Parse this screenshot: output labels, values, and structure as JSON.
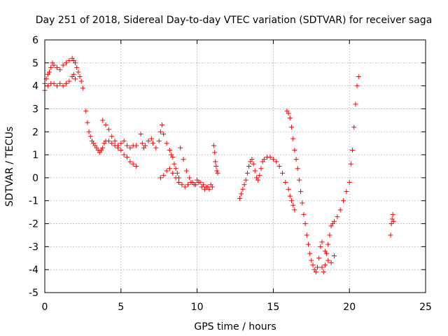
{
  "chart_data": {
    "type": "scatter",
    "title": "Day 251 of 2018, Sidereal Day-to-day VTEC variation (SDTVAR) for receiver saga",
    "xlabel": "GPS time / hours",
    "ylabel": "SDTVAR / TECUs",
    "xlim": [
      0,
      25
    ],
    "ylim": [
      -5,
      6
    ],
    "xticks": [
      0,
      5,
      10,
      15,
      20,
      25
    ],
    "yticks": [
      -5,
      -4,
      -3,
      -2,
      -1,
      0,
      1,
      2,
      3,
      4,
      5,
      6
    ],
    "grid": true,
    "marker": "+",
    "color": "#ff0000",
    "series": [
      {
        "x": [
          0.0,
          0.1,
          0.2,
          0.3,
          0.4,
          0.5,
          0.6,
          0.8,
          1.0,
          1.2,
          1.4,
          1.6,
          1.8,
          1.9,
          2.0,
          2.1,
          2.2,
          2.3,
          2.4,
          2.5,
          0.0,
          0.2,
          0.4,
          0.6,
          0.8,
          1.0,
          1.2,
          1.4,
          1.6,
          1.8,
          1.9,
          2.0,
          2.7,
          2.8,
          2.9,
          3.0,
          3.1,
          3.2,
          3.3,
          3.4,
          3.5,
          3.6,
          3.7,
          3.8,
          3.9,
          4.0,
          4.2,
          4.4,
          4.6,
          4.8,
          5.0,
          5.2,
          5.4,
          5.6,
          5.8,
          6.0,
          3.8,
          4.0,
          4.2,
          4.4,
          4.6,
          4.8,
          5.0,
          5.2,
          5.4,
          5.6,
          5.8,
          6.0,
          6.3,
          6.4,
          6.5,
          6.6,
          6.8,
          7.0,
          7.1,
          7.3,
          7.5,
          7.6,
          7.7,
          7.8,
          8.0,
          8.2,
          8.3,
          8.4,
          8.5,
          8.6,
          8.7,
          8.8,
          7.6,
          7.8,
          8.0,
          8.2,
          8.4,
          8.6,
          8.8,
          9.0,
          9.2,
          9.4,
          9.6,
          9.8,
          10.0,
          10.2,
          10.4,
          10.6,
          10.8,
          11.0,
          8.9,
          9.1,
          9.3,
          9.5,
          9.7,
          9.9,
          10.1,
          10.3,
          10.5,
          10.7,
          10.9,
          11.1,
          11.15,
          11.2,
          11.25,
          11.3,
          11.35,
          12.8,
          12.9,
          13.0,
          13.1,
          13.2,
          13.3,
          13.4,
          13.5,
          13.6,
          13.7,
          13.8,
          13.9,
          14.0,
          14.1,
          14.2,
          14.3,
          14.4,
          14.6,
          14.8,
          15.0,
          15.2,
          15.4,
          15.6,
          15.8,
          16.0,
          16.1,
          16.2,
          16.3,
          16.4,
          15.9,
          16.0,
          16.1,
          16.2,
          16.3,
          16.4,
          16.5,
          16.6,
          16.7,
          16.8,
          16.9,
          17.0,
          17.1,
          17.2,
          17.3,
          17.4,
          17.5,
          17.6,
          17.7,
          17.8,
          17.9,
          18.0,
          18.1,
          18.2,
          18.3,
          18.4,
          18.5,
          18.6,
          18.7,
          18.8,
          18.9,
          19.0,
          19.2,
          19.4,
          19.6,
          19.8,
          20.0,
          20.1,
          20.2,
          20.3,
          20.4,
          20.5,
          20.6,
          18.2,
          18.4,
          18.6,
          18.8,
          19.0,
          22.7,
          22.75,
          22.8,
          22.85,
          22.9,
          22.75
        ],
        "y": [
          4.1,
          4.3,
          4.5,
          4.6,
          4.8,
          5.0,
          4.9,
          4.8,
          4.7,
          4.9,
          5.0,
          5.1,
          5.2,
          5.1,
          5.0,
          4.8,
          4.6,
          4.4,
          4.2,
          3.9,
          3.8,
          4.0,
          4.1,
          4.1,
          4.0,
          4.1,
          4.0,
          4.1,
          4.2,
          4.4,
          4.5,
          4.3,
          2.9,
          2.4,
          2.0,
          1.8,
          1.6,
          1.5,
          1.4,
          1.3,
          1.2,
          1.1,
          1.2,
          1.3,
          1.5,
          1.6,
          1.6,
          1.5,
          1.4,
          1.3,
          1.5,
          1.6,
          1.4,
          1.3,
          1.4,
          1.4,
          2.5,
          2.3,
          2.1,
          1.8,
          1.6,
          1.4,
          1.2,
          1.0,
          0.9,
          0.7,
          0.6,
          0.5,
          1.9,
          1.5,
          1.3,
          1.4,
          1.6,
          1.7,
          1.5,
          1.3,
          1.6,
          2.0,
          2.3,
          1.9,
          1.5,
          1.2,
          1.0,
          0.9,
          0.6,
          0.4,
          0.2,
          0.0,
          0.0,
          0.1,
          0.3,
          0.4,
          0.2,
          0.0,
          -0.2,
          -0.3,
          -0.4,
          -0.3,
          -0.2,
          -0.3,
          -0.1,
          -0.2,
          -0.3,
          -0.4,
          -0.5,
          -0.4,
          1.3,
          0.8,
          0.3,
          0.0,
          -0.2,
          -0.3,
          -0.2,
          -0.4,
          -0.5,
          -0.4,
          -0.3,
          1.4,
          1.1,
          0.7,
          0.5,
          0.3,
          0.2,
          -0.9,
          -0.7,
          -0.5,
          -0.3,
          -0.1,
          0.2,
          0.5,
          0.7,
          0.8,
          0.6,
          0.3,
          0.0,
          -0.1,
          0.1,
          0.4,
          0.7,
          0.8,
          0.9,
          0.9,
          0.8,
          0.7,
          0.5,
          0.2,
          -0.2,
          -0.5,
          -0.8,
          -1.0,
          -1.2,
          -1.4,
          2.9,
          2.8,
          2.6,
          2.2,
          1.7,
          1.2,
          0.8,
          0.4,
          -0.1,
          -0.6,
          -1.1,
          -1.6,
          -2.0,
          -2.5,
          -2.9,
          -3.3,
          -3.6,
          -3.8,
          -4.0,
          -4.1,
          -3.9,
          -3.5,
          -3.0,
          -3.9,
          -4.1,
          -3.8,
          -3.3,
          -2.9,
          -2.5,
          -2.1,
          -2.0,
          -1.9,
          -1.7,
          -1.4,
          -1.0,
          -0.6,
          -0.2,
          0.6,
          1.2,
          2.2,
          3.2,
          4.0,
          4.4,
          -2.8,
          -3.2,
          -3.6,
          -3.7,
          -3.4,
          -2.5,
          -2.0,
          -1.8,
          -1.6,
          -1.9,
          -2.0
        ]
      }
    ]
  }
}
